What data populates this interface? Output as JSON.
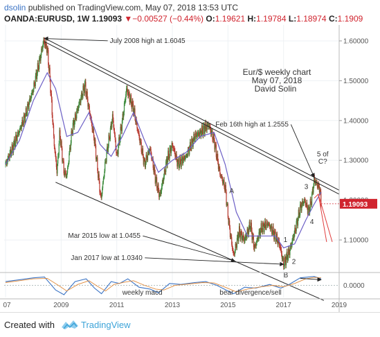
{
  "header": {
    "user": "dsolin",
    "published": "published on TradingView.com, May 07, 2018 13:53 UTC",
    "symbol": "OANDA:EURUSD, 1W",
    "price": "1.19093",
    "change": "▼−0.00527 (−0.44%)",
    "o_label": "O:",
    "o_val": "1.19621",
    "h_label": "H:",
    "h_val": "1.19784",
    "l_label": "L:",
    "l_val": "1.18974",
    "c_label": "C:",
    "c_val": "1.1909"
  },
  "footer": {
    "created_with": "Created with",
    "brand": "TradingView"
  },
  "colors": {
    "up": "#3a8a3a",
    "down": "#b8392f",
    "ma": "#6c5fc6",
    "trend": "#222222",
    "forecast": "#e03b3b",
    "price_tag": "#d0242e",
    "macd": "#3b74c5"
  },
  "chart_data": {
    "type": "candlestick",
    "title": "Eur/$ weekly chart",
    "subtitle": "May 07, 2018",
    "author": "David Solin",
    "x_ticks": [
      "07",
      "2009",
      "2011",
      "2013",
      "2015",
      "2017",
      "2019"
    ],
    "x_tick_years": [
      2007.0,
      2009.0,
      2011.0,
      2013.0,
      2015.0,
      2017.0,
      2019.0
    ],
    "y_ticks": [
      "1.60000",
      "1.50000",
      "1.40000",
      "1.30000",
      "1.20000",
      "1.10000"
    ],
    "y_tick_values": [
      1.6,
      1.5,
      1.4,
      1.3,
      1.2,
      1.1
    ],
    "ylim": [
      1.02,
      1.64
    ],
    "xlim": [
      2006.95,
      2019.0
    ],
    "last_price": {
      "value": 1.19093,
      "label": "1.19093"
    },
    "price_path": [
      [
        2007.0,
        1.29
      ],
      [
        2007.3,
        1.34
      ],
      [
        2007.7,
        1.41
      ],
      [
        2008.0,
        1.48
      ],
      [
        2008.25,
        1.56
      ],
      [
        2008.37,
        1.6
      ],
      [
        2008.5,
        1.58
      ],
      [
        2008.6,
        1.5
      ],
      [
        2008.75,
        1.34
      ],
      [
        2008.85,
        1.27
      ],
      [
        2008.95,
        1.37
      ],
      [
        2009.1,
        1.27
      ],
      [
        2009.2,
        1.26
      ],
      [
        2009.4,
        1.38
      ],
      [
        2009.6,
        1.43
      ],
      [
        2009.85,
        1.49
      ],
      [
        2010.0,
        1.43
      ],
      [
        2010.2,
        1.35
      ],
      [
        2010.43,
        1.2
      ],
      [
        2010.6,
        1.3
      ],
      [
        2010.85,
        1.41
      ],
      [
        2011.0,
        1.31
      ],
      [
        2011.2,
        1.4
      ],
      [
        2011.35,
        1.48
      ],
      [
        2011.6,
        1.43
      ],
      [
        2011.8,
        1.36
      ],
      [
        2012.0,
        1.29
      ],
      [
        2012.2,
        1.33
      ],
      [
        2012.4,
        1.25
      ],
      [
        2012.55,
        1.21
      ],
      [
        2012.8,
        1.3
      ],
      [
        2013.0,
        1.34
      ],
      [
        2013.2,
        1.29
      ],
      [
        2013.5,
        1.31
      ],
      [
        2013.8,
        1.36
      ],
      [
        2014.0,
        1.37
      ],
      [
        2014.3,
        1.39
      ],
      [
        2014.5,
        1.35
      ],
      [
        2014.7,
        1.27
      ],
      [
        2014.9,
        1.23
      ],
      [
        2015.05,
        1.13
      ],
      [
        2015.2,
        1.06
      ],
      [
        2015.4,
        1.12
      ],
      [
        2015.6,
        1.1
      ],
      [
        2015.8,
        1.14
      ],
      [
        2015.95,
        1.08
      ],
      [
        2016.2,
        1.13
      ],
      [
        2016.45,
        1.14
      ],
      [
        2016.7,
        1.11
      ],
      [
        2016.85,
        1.09
      ],
      [
        2017.0,
        1.04
      ],
      [
        2017.2,
        1.07
      ],
      [
        2017.4,
        1.12
      ],
      [
        2017.6,
        1.18
      ],
      [
        2017.75,
        1.2
      ],
      [
        2017.9,
        1.17
      ],
      [
        2018.0,
        1.2
      ],
      [
        2018.1,
        1.25
      ],
      [
        2018.2,
        1.24
      ],
      [
        2018.3,
        1.23
      ],
      [
        2018.35,
        1.19
      ]
    ],
    "moving_average": [
      [
        2007.0,
        1.29
      ],
      [
        2007.5,
        1.35
      ],
      [
        2008.0,
        1.45
      ],
      [
        2008.5,
        1.52
      ],
      [
        2008.8,
        1.48
      ],
      [
        2009.2,
        1.36
      ],
      [
        2009.6,
        1.37
      ],
      [
        2010.0,
        1.42
      ],
      [
        2010.4,
        1.34
      ],
      [
        2010.8,
        1.31
      ],
      [
        2011.2,
        1.36
      ],
      [
        2011.6,
        1.42
      ],
      [
        2012.0,
        1.35
      ],
      [
        2012.5,
        1.27
      ],
      [
        2013.0,
        1.3
      ],
      [
        2013.5,
        1.32
      ],
      [
        2014.0,
        1.36
      ],
      [
        2014.5,
        1.37
      ],
      [
        2014.9,
        1.29
      ],
      [
        2015.3,
        1.17
      ],
      [
        2015.7,
        1.11
      ],
      [
        2016.2,
        1.11
      ],
      [
        2016.7,
        1.11
      ],
      [
        2017.0,
        1.08
      ],
      [
        2017.4,
        1.09
      ],
      [
        2017.8,
        1.15
      ],
      [
        2018.1,
        1.19
      ],
      [
        2018.35,
        1.22
      ]
    ],
    "trend_lines": [
      {
        "name": "upper-channel-1",
        "from": [
          2008.4,
          1.607
        ],
        "to": [
          2019.0,
          1.225
        ]
      },
      {
        "name": "upper-channel-2",
        "from": [
          2008.4,
          1.598
        ],
        "to": [
          2019.0,
          1.215
        ]
      },
      {
        "name": "lower-channel",
        "from": [
          2008.8,
          1.245
        ],
        "to": [
          2018.45,
          0.948
        ]
      }
    ],
    "forecast_lines": [
      [
        [
          2018.1,
          1.205
        ],
        [
          2018.25,
          1.215
        ],
        [
          2018.55,
          1.095
        ]
      ],
      [
        [
          2018.25,
          1.215
        ],
        [
          2018.75,
          1.095
        ]
      ]
    ],
    "annotations": [
      {
        "text": "July 2008 high at 1.6045",
        "at": [
          2010.75,
          1.595
        ],
        "arrow_to": [
          2008.4,
          1.606
        ]
      },
      {
        "text": "Feb 16th high at 1.2555",
        "at": [
          2014.55,
          1.385
        ],
        "arrow_to": [
          2018.1,
          1.258
        ]
      },
      {
        "text": "Mar 2015 low at 1.0455",
        "at": [
          2009.25,
          1.105
        ],
        "arrow_to": [
          2015.25,
          1.047
        ]
      },
      {
        "text": "Jan 2017 low at 1.0340",
        "at": [
          2009.35,
          1.05
        ],
        "arrow_to": [
          2017.0,
          1.039
        ]
      },
      {
        "text": "5 of",
        "at": [
          2018.2,
          1.31
        ],
        "arrow_to": null
      },
      {
        "text": "C?",
        "at": [
          2018.25,
          1.292
        ],
        "arrow_to": null
      },
      {
        "text": "A",
        "at": [
          2015.05,
          1.218
        ],
        "arrow_to": null
      },
      {
        "text": "B",
        "at": [
          2017.0,
          1.006
        ],
        "arrow_to": null
      },
      {
        "text": "1",
        "at": [
          2017.0,
          1.095
        ],
        "arrow_to": null
      },
      {
        "text": "2",
        "at": [
          2017.3,
          1.04
        ],
        "arrow_to": null
      },
      {
        "text": "3",
        "at": [
          2017.75,
          1.228
        ],
        "arrow_to": null
      },
      {
        "text": "4",
        "at": [
          2017.95,
          1.14
        ],
        "arrow_to": null
      }
    ],
    "indicator": {
      "name": "weekly macd",
      "zero_label": "0.0000",
      "note": "bear divergence/sell",
      "macd": [
        [
          2007.0,
          0.4
        ],
        [
          2007.5,
          0.6
        ],
        [
          2008.0,
          0.8
        ],
        [
          2008.4,
          0.9
        ],
        [
          2008.8,
          -0.5
        ],
        [
          2009.1,
          -1.0
        ],
        [
          2009.5,
          0.4
        ],
        [
          2009.9,
          0.7
        ],
        [
          2010.2,
          -0.3
        ],
        [
          2010.45,
          -0.9
        ],
        [
          2010.8,
          0.4
        ],
        [
          2011.1,
          0.2
        ],
        [
          2011.4,
          0.7
        ],
        [
          2011.8,
          -0.2
        ],
        [
          2012.2,
          -0.4
        ],
        [
          2012.5,
          -0.8
        ],
        [
          2012.9,
          0.2
        ],
        [
          2013.3,
          0.1
        ],
        [
          2013.8,
          0.3
        ],
        [
          2014.2,
          0.4
        ],
        [
          2014.6,
          0.0
        ],
        [
          2015.0,
          -0.6
        ],
        [
          2015.2,
          -0.9
        ],
        [
          2015.6,
          -0.2
        ],
        [
          2016.0,
          -0.3
        ],
        [
          2016.5,
          0.1
        ],
        [
          2016.9,
          -0.3
        ],
        [
          2017.2,
          0.1
        ],
        [
          2017.6,
          0.8
        ],
        [
          2017.9,
          0.9
        ],
        [
          2018.1,
          0.95
        ],
        [
          2018.35,
          0.7
        ]
      ],
      "signal": [
        [
          2007.0,
          0.3
        ],
        [
          2007.5,
          0.5
        ],
        [
          2008.0,
          0.7
        ],
        [
          2008.5,
          0.75
        ],
        [
          2008.9,
          0.0
        ],
        [
          2009.2,
          -0.6
        ],
        [
          2009.6,
          0.1
        ],
        [
          2010.0,
          0.5
        ],
        [
          2010.3,
          -0.1
        ],
        [
          2010.6,
          -0.6
        ],
        [
          2010.9,
          0.1
        ],
        [
          2011.3,
          0.35
        ],
        [
          2011.6,
          0.5
        ],
        [
          2012.0,
          0.0
        ],
        [
          2012.4,
          -0.4
        ],
        [
          2012.7,
          -0.5
        ],
        [
          2013.1,
          0.0
        ],
        [
          2013.6,
          0.15
        ],
        [
          2014.1,
          0.3
        ],
        [
          2014.5,
          0.25
        ],
        [
          2014.9,
          -0.2
        ],
        [
          2015.3,
          -0.7
        ],
        [
          2015.7,
          -0.4
        ],
        [
          2016.1,
          -0.2
        ],
        [
          2016.6,
          0.0
        ],
        [
          2017.0,
          -0.15
        ],
        [
          2017.4,
          0.2
        ],
        [
          2017.8,
          0.7
        ],
        [
          2018.1,
          0.85
        ],
        [
          2018.35,
          0.8
        ]
      ],
      "ylim": [
        -1.3,
        1.3
      ]
    }
  }
}
